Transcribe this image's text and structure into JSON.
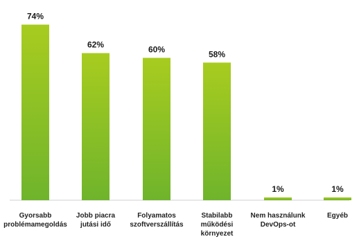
{
  "chart_data": {
    "type": "bar",
    "categories": [
      [
        "Gyorsabb",
        "problémamegoldás"
      ],
      [
        "Jobb piacra",
        "jutási idő"
      ],
      [
        "Folyamatos",
        "szoftverszállítás"
      ],
      [
        "Stabilabb",
        "működési",
        "környezet"
      ],
      [
        "Nem használunk",
        "DevOps-ot"
      ],
      [
        "Egyéb"
      ]
    ],
    "values": [
      74,
      62,
      60,
      58,
      1,
      1
    ],
    "value_labels": [
      "74%",
      "62%",
      "60%",
      "58%",
      "1%",
      "1%"
    ],
    "ylim": [
      0,
      80
    ],
    "grid": false,
    "bar_gradient": {
      "top": "#a8cc1f",
      "bottom": "#6fb42c"
    },
    "title": "",
    "xlabel": "",
    "ylabel": ""
  }
}
